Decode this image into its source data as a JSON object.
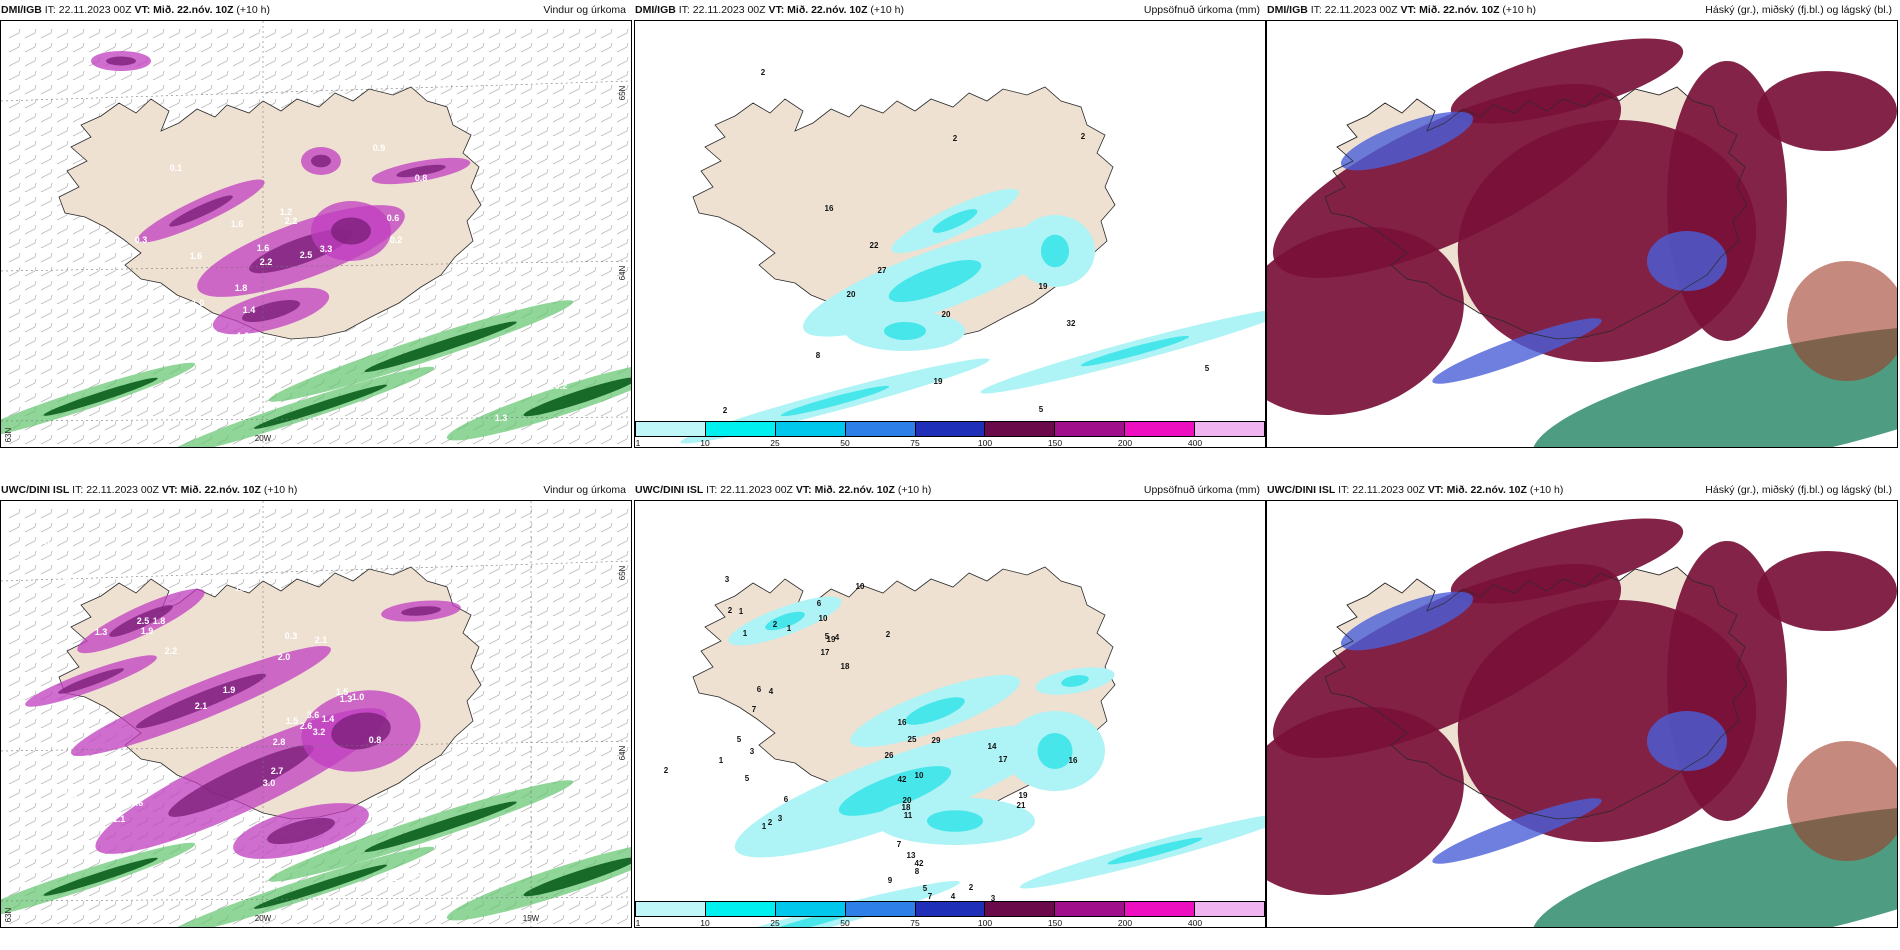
{
  "colors": {
    "land": "#efe1d2",
    "coast": "#2b2b2b",
    "precip_light": "#aef3f5",
    "precip_mid": "#46e6ea",
    "magenta_dark": "#7d1f7a",
    "magenta": "#c03ec0",
    "magenta_light": "#e9a8ec",
    "green_dark": "#0b5e1d",
    "green": "#5fc46c",
    "green_light": "#c9efca",
    "cloud_high": "#7a1038",
    "cloud_mid": "#4a5fd8",
    "cloud_low": "#2f8c6d",
    "cloud_orange": "#9f3a27"
  },
  "colorbar": {
    "swatch_colors": [
      "#bff6f8",
      "#00f0f0",
      "#00c8ec",
      "#2f7fe8",
      "#1f2fb8",
      "#6a0a4a",
      "#a0108a",
      "#ec10c0",
      "#f0b4f0"
    ],
    "labels": [
      "1",
      "10",
      "25",
      "50",
      "75",
      "100",
      "150",
      "200",
      "400"
    ]
  },
  "panels": [
    {
      "model": "DMI/IGB",
      "it_label": "IT:",
      "it_value": "22.11.2023 00Z",
      "vt_label": "VT:",
      "vt_value": "Mið. 22.nóv. 10Z",
      "lead": "(+10 h)",
      "product": "Vindur og úrkoma",
      "axis_labels": [
        "65N",
        "64N",
        "63N",
        "20W"
      ],
      "values": [
        "0.1",
        "0.9",
        "0.2",
        "0.3",
        "0.6",
        "0.8",
        "2.2",
        "1.6",
        "1.6",
        "1.2",
        "2.5",
        "3.3",
        "2.2",
        "1.8",
        "1.0",
        "1.4",
        "1.6",
        "1.0",
        "3.3",
        "2.8",
        "1.0",
        "0.6",
        "1.0",
        "0.2",
        "0.2",
        "1.3"
      ]
    },
    {
      "model": "DMI/IGB",
      "it_label": "IT:",
      "it_value": "22.11.2023 00Z",
      "vt_label": "VT:",
      "vt_value": "Mið. 22.nóv. 10Z",
      "lead": "(+10 h)",
      "product": "Uppsöfnuð úrkoma (mm)",
      "values": [
        "2",
        "2",
        "2",
        "16",
        "22",
        "27",
        "20",
        "19",
        "20",
        "32",
        "8",
        "5",
        "19",
        "5",
        "2"
      ]
    },
    {
      "model": "DMI/IGB",
      "it_label": "IT:",
      "it_value": "22.11.2023 00Z",
      "vt_label": "VT:",
      "vt_value": "Mið. 22.nóv. 10Z",
      "lead": "(+10 h)",
      "product": "Háský (gr.), miðský (fj.bl.) og lágský (bl.)"
    },
    {
      "model": "UWC/DINI ISL",
      "it_label": "IT:",
      "it_value": "22.11.2023 00Z",
      "vt_label": "VT:",
      "vt_value": "Mið. 22.nóv. 10Z",
      "lead": "(+10 h)",
      "product": "Vindur og úrkoma",
      "axis_labels": [
        "65N",
        "64N",
        "63N",
        "20W",
        "15W"
      ],
      "values": [
        "0.3",
        "0.6",
        "1.6",
        "1.3",
        "1.9",
        "2.5",
        "1.2",
        "1.8",
        "0.3",
        "2.1",
        "2.2",
        "2.6",
        "3.2",
        "1.9",
        "2.1",
        "2.0",
        "3.6",
        "2.8",
        "1.5",
        "1.0",
        "2.7",
        "3.0",
        "1.3",
        "1.4",
        "1.5",
        "0.8",
        "0.6",
        "0.6",
        "1.1",
        "0.5",
        "1.3",
        "0.8",
        "0.3",
        "0.2",
        "0.1"
      ]
    },
    {
      "model": "UWC/DINI ISL",
      "it_label": "IT:",
      "it_value": "22.11.2023 00Z",
      "vt_label": "VT:",
      "vt_value": "Mið. 22.nóv. 10Z",
      "lead": "(+10 h)",
      "product": "Uppsöfnuð úrkoma (mm)",
      "values": [
        "3",
        "2",
        "1",
        "1",
        "2",
        "10",
        "6",
        "10",
        "5",
        "4",
        "17",
        "19",
        "18",
        "2",
        "1",
        "6",
        "7",
        "5",
        "1",
        "3",
        "2",
        "4",
        "25",
        "29",
        "26",
        "16",
        "42",
        "20",
        "18",
        "10",
        "14",
        "17",
        "16",
        "19",
        "21",
        "11",
        "7",
        "5",
        "6",
        "3",
        "2",
        "1",
        "13",
        "42",
        "8",
        "9",
        "5",
        "7",
        "4",
        "2",
        "3"
      ]
    },
    {
      "model": "UWC/DINI ISL",
      "it_label": "IT:",
      "it_value": "22.11.2023 00Z",
      "vt_label": "VT:",
      "vt_value": "Mið. 22.nóv. 10Z",
      "lead": "(+10 h)",
      "product": "Háský (gr.), miðský (fj.bl.) og lágský (bl.)"
    }
  ]
}
